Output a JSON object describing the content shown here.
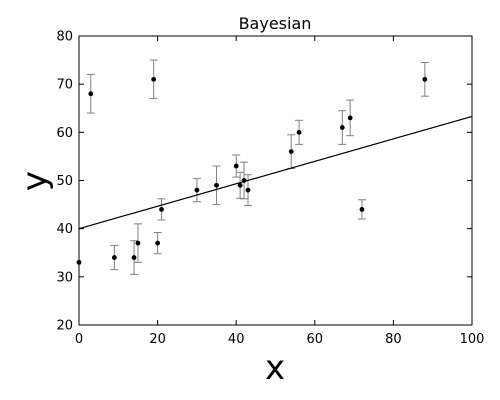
{
  "chart_data": {
    "type": "scatter",
    "title": "Bayesian",
    "xlabel": "x",
    "ylabel": "y",
    "xlim": [
      0,
      100
    ],
    "ylim": [
      20,
      80
    ],
    "xticks": [
      0,
      20,
      40,
      60,
      80,
      100
    ],
    "yticks": [
      20,
      30,
      40,
      50,
      60,
      70,
      80
    ],
    "grid": false,
    "colors": {
      "points": "#000000",
      "errorbars": "#808080",
      "fit_line": "#000000"
    },
    "series": [
      {
        "type": "errorbar",
        "points": [
          {
            "x": 0,
            "y": 33,
            "err": 0
          },
          {
            "x": 3,
            "y": 68,
            "err": 4
          },
          {
            "x": 9,
            "y": 34,
            "err": 2.5
          },
          {
            "x": 14,
            "y": 34,
            "err": 3.5
          },
          {
            "x": 15,
            "y": 37,
            "err": 4
          },
          {
            "x": 19,
            "y": 71,
            "err": 4
          },
          {
            "x": 20,
            "y": 37,
            "err": 2.2
          },
          {
            "x": 21,
            "y": 44,
            "err": 2.2
          },
          {
            "x": 30,
            "y": 48,
            "err": 2.4
          },
          {
            "x": 35,
            "y": 49,
            "err": 4
          },
          {
            "x": 40,
            "y": 53,
            "err": 2.3
          },
          {
            "x": 41,
            "y": 49,
            "err": 2.7
          },
          {
            "x": 42,
            "y": 50,
            "err": 3.8
          },
          {
            "x": 43,
            "y": 48,
            "err": 3.2
          },
          {
            "x": 54,
            "y": 56,
            "err": 3.5
          },
          {
            "x": 56,
            "y": 60,
            "err": 2.5
          },
          {
            "x": 67,
            "y": 61,
            "err": 3.5
          },
          {
            "x": 69,
            "y": 63,
            "err": 3.7
          },
          {
            "x": 72,
            "y": 44,
            "err": 2
          },
          {
            "x": 88,
            "y": 71,
            "err": 3.5
          }
        ]
      },
      {
        "type": "line",
        "x": [
          0,
          100
        ],
        "y": [
          40,
          63.3
        ]
      }
    ]
  }
}
